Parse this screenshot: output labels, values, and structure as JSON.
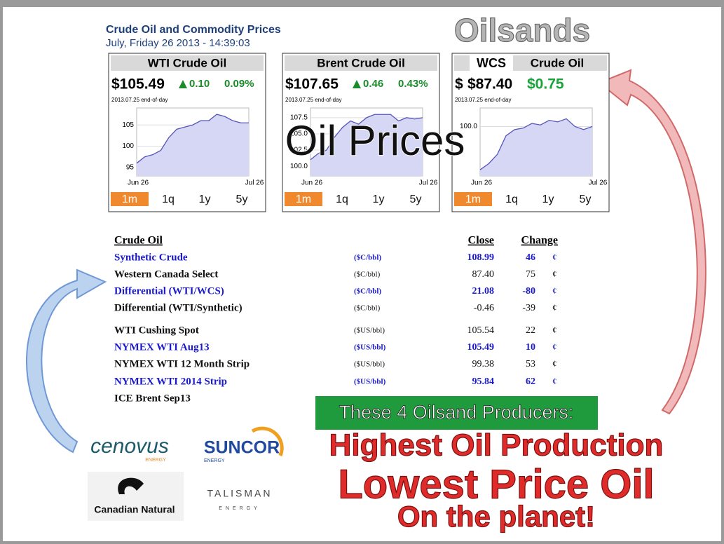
{
  "header": {
    "title": "Crude Oil and Commodity Prices",
    "timestamp": "July, Friday 26 2013 - 14:39:03",
    "brand": "Oilsands",
    "overlay": "Oil Prices"
  },
  "panels": [
    {
      "title": "WTI Crude Oil",
      "price": "$105.49",
      "arrow": "up",
      "change": "0.10",
      "change_pct": "0.09%",
      "date_note": "2013.07.25 end-of-day",
      "ylim": [
        93,
        109
      ],
      "yticks": [
        105,
        100,
        95
      ],
      "values": [
        96,
        97.5,
        98,
        99,
        102,
        104,
        104.5,
        105,
        106,
        106,
        107.5,
        107,
        106,
        105.5,
        105.5
      ],
      "x_labels": [
        "Jun 26",
        "Jul 26"
      ],
      "buttons": [
        "1m",
        "1q",
        "1y",
        "5y"
      ]
    },
    {
      "title": "Brent Crude Oil",
      "price": "$107.65",
      "arrow": "up",
      "change": "0.46",
      "change_pct": "0.43%",
      "date_note": "2013.07.25 end-of-day",
      "ylim": [
        98.5,
        109
      ],
      "yticks": [
        {
          "value": 107.5,
          "label": "107.5"
        },
        {
          "value": 105,
          "label": "105.0"
        },
        {
          "value": 102.5,
          "label": "102.5"
        },
        {
          "value": 100,
          "label": "100.0"
        }
      ],
      "values": [
        101,
        102,
        102.5,
        104.5,
        106,
        107,
        106.5,
        107.5,
        108,
        108,
        108,
        107,
        107.5,
        107.3,
        107.5
      ],
      "x_labels": [
        "Jun 26",
        "Jul 26"
      ],
      "buttons": [
        "1m",
        "1q",
        "1y",
        "5y"
      ]
    },
    {
      "title_tag": "WCS",
      "title": "Crude Oil",
      "currency": "$",
      "price": "$87.40",
      "change": "$0.75",
      "date_note": "2013.07.25 end-of-day",
      "ylim": [
        84,
        106
      ],
      "yticks": [
        {
          "value": 100,
          "label": "100.0"
        }
      ],
      "values": [
        86,
        88,
        91,
        97,
        99,
        99.5,
        101,
        100.5,
        102,
        101.5,
        102.5,
        100,
        99,
        100
      ],
      "x_labels": [
        "Jun 26",
        "Jul 26"
      ],
      "buttons": [
        "1m",
        "1q",
        "1y",
        "5y"
      ]
    }
  ],
  "table": {
    "header": [
      "Crude Oil",
      "Close",
      "Change"
    ],
    "rows": [
      {
        "name": "Synthetic Crude",
        "unit": "($C/bbl)",
        "close": "108.99",
        "change": "46",
        "cents": "¢",
        "highlight": true
      },
      {
        "name": "Western Canada Select",
        "unit": "($C/bbl)",
        "close": "87.40",
        "change": "75",
        "cents": "¢",
        "highlight": false
      },
      {
        "name": "Differential (WTI/WCS)",
        "unit": "($C/bbl)",
        "close": "21.08",
        "change": "-80",
        "cents": "¢",
        "highlight": true
      },
      {
        "name": "Differential (WTI/Synthetic)",
        "unit": "($C/bbl)",
        "close": "-0.46",
        "change": "-39",
        "cents": "¢",
        "highlight": false
      },
      {
        "name": "WTI Cushing Spot",
        "unit": "($US/bbl)",
        "close": "105.54",
        "change": "22",
        "cents": "¢",
        "highlight": false
      },
      {
        "name": "NYMEX WTI Aug13",
        "unit": "($US/bbl)",
        "close": "105.49",
        "change": "10",
        "cents": "¢",
        "highlight": true
      },
      {
        "name": "NYMEX WTI 12 Month Strip",
        "unit": "($US/bbl)",
        "close": "99.38",
        "change": "53",
        "cents": "¢",
        "highlight": false
      },
      {
        "name": "NYMEX WTI 2014 Strip",
        "unit": "($US/bbl)",
        "close": "95.84",
        "change": "62",
        "cents": "¢",
        "highlight": true
      },
      {
        "name": "ICE Brent Sep13"
      }
    ]
  },
  "callout": {
    "banner": "These 4 Oilsand Producers:",
    "line1": "Highest Oil Production",
    "line2": "Lowest Price Oil",
    "line3": "On the planet!"
  },
  "logos": {
    "cenovus": "cenovus",
    "cenovus_sub": "ENERGY",
    "suncor": "SUNCOR",
    "suncor_sub": "ENERGY",
    "cnrl": "Canadian Natural",
    "talisman": "TALISMAN",
    "talisman_sub": "ENERGY"
  }
}
